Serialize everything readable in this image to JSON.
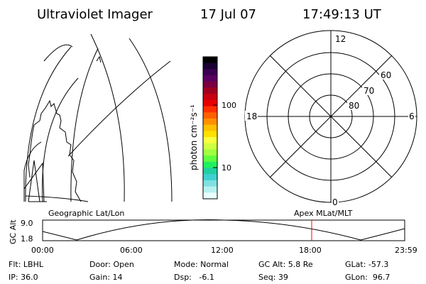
{
  "header": {
    "instrument": "Ultraviolet Imager",
    "date": "17 Jul 07",
    "time": "17:49:13 UT"
  },
  "colorbar": {
    "unit_label": "photon cm⁻²s⁻¹",
    "ticks": [
      "100",
      "10"
    ],
    "colors": [
      "#000000",
      "#1a0033",
      "#3a0050",
      "#5a0060",
      "#7a0040",
      "#a00020",
      "#c80010",
      "#e80000",
      "#ff3000",
      "#ff6000",
      "#ff9000",
      "#ffc000",
      "#ffe000",
      "#f8ff40",
      "#d0ff40",
      "#a0ff40",
      "#60ff40",
      "#20f060",
      "#20d0a0",
      "#40d0d0",
      "#80e0e0",
      "#b8f0f0",
      "#e8ffff"
    ]
  },
  "polar_plot": {
    "mlt_labels": [
      "12",
      "18",
      "6",
      "0"
    ],
    "lat_labels": [
      "60",
      "70",
      "80"
    ]
  },
  "timeline": {
    "left_label": "Geographic Lat/Lon",
    "right_label": "Apex MLat/MLT",
    "axis_label": "GC Alt",
    "y_ticks": [
      "9.0",
      "1.8"
    ],
    "x_ticks": [
      "00:00",
      "06:00",
      "12:00",
      "18:00",
      "23:59"
    ],
    "marker_color": "#ff0000"
  },
  "status": {
    "flt": "Flt: LBHL",
    "ip": "IP: 36.0",
    "door": "Door: Open",
    "gain": "Gain: 14",
    "mode": "Mode: Normal",
    "dsp": "Dsp:   -6.1",
    "gc_alt": "GC Alt: 5.8 Re",
    "seq": "Seq: 39",
    "glat": "GLat: -57.3",
    "glon": "GLon:  96.7"
  }
}
